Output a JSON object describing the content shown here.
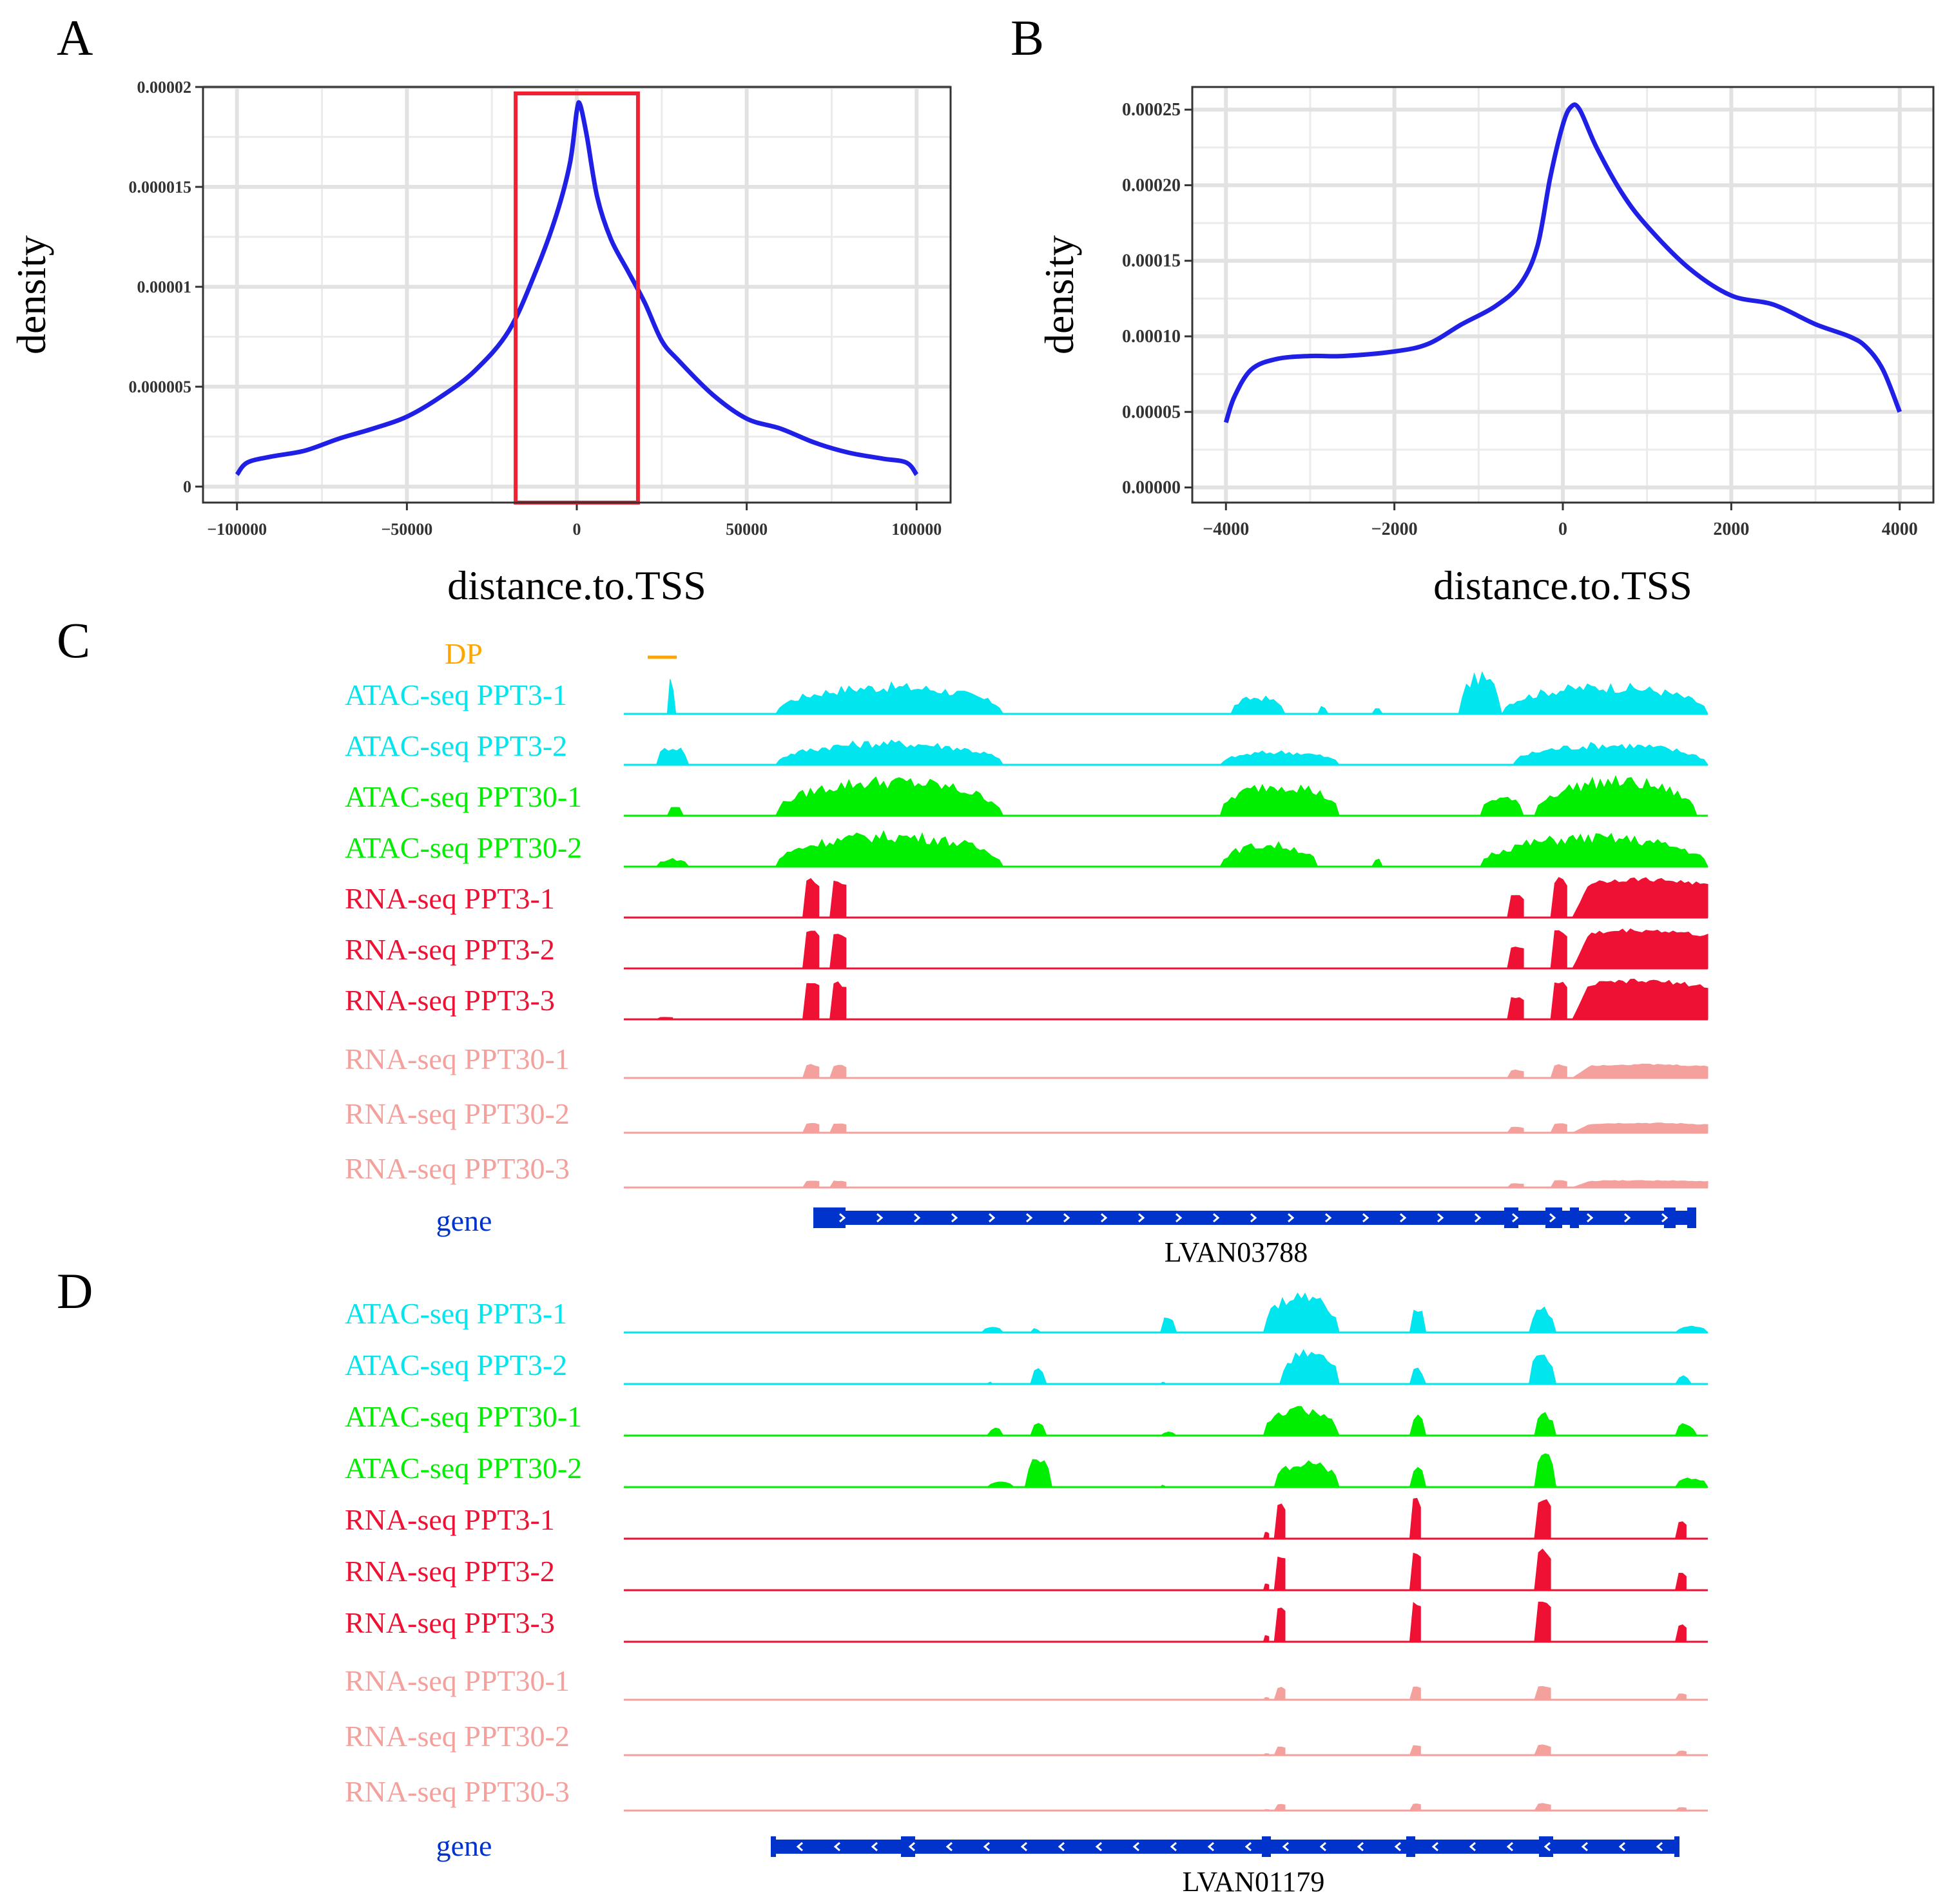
{
  "colors": {
    "atac_ppt3": "#00e5ee",
    "atac_ppt30": "#00ee00",
    "rna_ppt3": "#ee1133",
    "rna_ppt30": "#f4a09c",
    "gene": "#0033cc",
    "dp": "#ffa500",
    "density_line": "#1f1fe6",
    "highlight_box": "#ee2233"
  },
  "panels": {
    "A": {
      "letter": "A"
    },
    "B": {
      "letter": "B"
    },
    "C": {
      "letter": "C",
      "dp_label": "DP",
      "gene_track_label": "gene",
      "gene_name": "LVAN03788",
      "tracks": [
        {
          "label": "ATAC-seq PPT3-1",
          "kind": "atac3"
        },
        {
          "label": "ATAC-seq PPT3-2",
          "kind": "atac3"
        },
        {
          "label": "ATAC-seq PPT30-1",
          "kind": "atac30"
        },
        {
          "label": "ATAC-seq PPT30-2",
          "kind": "atac30"
        },
        {
          "label": "RNA-seq PPT3-1",
          "kind": "rna3"
        },
        {
          "label": "RNA-seq PPT3-2",
          "kind": "rna3"
        },
        {
          "label": "RNA-seq PPT3-3",
          "kind": "rna3"
        },
        {
          "label": "RNA-seq PPT30-1",
          "kind": "rna30"
        },
        {
          "label": "RNA-seq PPT30-2",
          "kind": "rna30"
        },
        {
          "label": "RNA-seq PPT30-3",
          "kind": "rna30"
        }
      ]
    },
    "D": {
      "letter": "D",
      "gene_track_label": "gene",
      "gene_name": "LVAN01179",
      "tracks": [
        {
          "label": "ATAC-seq PPT3-1",
          "kind": "atac3"
        },
        {
          "label": "ATAC-seq PPT3-2",
          "kind": "atac3"
        },
        {
          "label": "ATAC-seq PPT30-1",
          "kind": "atac30"
        },
        {
          "label": "ATAC-seq PPT30-2",
          "kind": "atac30"
        },
        {
          "label": "RNA-seq PPT3-1",
          "kind": "rna3"
        },
        {
          "label": "RNA-seq PPT3-2",
          "kind": "rna3"
        },
        {
          "label": "RNA-seq PPT3-3",
          "kind": "rna3"
        },
        {
          "label": "RNA-seq PPT30-1",
          "kind": "rna30"
        },
        {
          "label": "RNA-seq PPT30-2",
          "kind": "rna30"
        },
        {
          "label": "RNA-seq PPT30-3",
          "kind": "rna30"
        }
      ]
    }
  },
  "chart_data": [
    {
      "id": "A",
      "type": "line",
      "title": "",
      "xlabel": "distance.to.TSS",
      "ylabel": "density",
      "xlim": [
        -110000,
        110000
      ],
      "ylim": [
        -8e-07,
        2e-05
      ],
      "xticks": [
        -100000,
        -50000,
        0,
        50000,
        100000
      ],
      "xtick_labels": [
        "−100000",
        "−50000",
        "0",
        "50000",
        "100000"
      ],
      "yticks": [
        0,
        5e-06,
        1e-05,
        1.5e-05,
        2e-05
      ],
      "ytick_labels": [
        "0",
        "0.000005",
        "0.00001",
        "0.000015",
        "0.00002"
      ],
      "grid": true,
      "highlight_box": {
        "x0": -18000,
        "x1": 18000
      },
      "series": [
        {
          "name": "density",
          "x": [
            -100000,
            -97000,
            -90000,
            -80000,
            -70000,
            -60000,
            -50000,
            -40000,
            -30000,
            -20000,
            -12000,
            -6000,
            -2000,
            0,
            1000,
            3000,
            6000,
            10000,
            15000,
            20000,
            25000,
            30000,
            40000,
            50000,
            60000,
            70000,
            80000,
            90000,
            97000,
            100000
          ],
          "y": [
            6e-07,
            1.2e-06,
            1.5e-06,
            1.8e-06,
            2.4e-06,
            2.9e-06,
            3.5e-06,
            4.5e-06,
            5.8e-06,
            7.8e-06,
            1.08e-05,
            1.36e-05,
            1.62e-05,
            1.88e-05,
            1.91e-05,
            1.75e-05,
            1.45e-05,
            1.24e-05,
            1.08e-05,
            9.2e-06,
            7.3e-06,
            6.3e-06,
            4.6e-06,
            3.4e-06,
            2.9e-06,
            2.2e-06,
            1.7e-06,
            1.4e-06,
            1.2e-06,
            6e-07
          ]
        }
      ]
    },
    {
      "id": "B",
      "type": "line",
      "title": "",
      "xlabel": "distance.to.TSS",
      "ylabel": "density",
      "xlim": [
        -4400,
        4400
      ],
      "ylim": [
        -1e-05,
        0.000265
      ],
      "xticks": [
        -4000,
        -2000,
        0,
        2000,
        4000
      ],
      "xtick_labels": [
        "−4000",
        "−2000",
        "0",
        "2000",
        "4000"
      ],
      "yticks": [
        0,
        5e-05,
        0.0001,
        0.00015,
        0.0002,
        0.00025
      ],
      "ytick_labels": [
        "0.00000",
        "0.00005",
        "0.00010",
        "0.00015",
        "0.00020",
        "0.00025"
      ],
      "grid": true,
      "series": [
        {
          "name": "density",
          "x": [
            -4000,
            -3900,
            -3700,
            -3400,
            -3000,
            -2600,
            -2000,
            -1600,
            -1200,
            -800,
            -500,
            -300,
            -150,
            0,
            100,
            200,
            400,
            700,
            1000,
            1500,
            2000,
            2500,
            3000,
            3400,
            3600,
            3800,
            4000
          ],
          "y": [
            4.3e-05,
            6e-05,
            7.8e-05,
            8.5e-05,
            8.7e-05,
            8.7e-05,
            9e-05,
            9.5e-05,
            0.000108,
            0.00012,
            0.000135,
            0.00016,
            0.000205,
            0.00024,
            0.000252,
            0.00025,
            0.000225,
            0.000195,
            0.000173,
            0.000145,
            0.000127,
            0.000121,
            0.000108,
            0.0001,
            9.3e-05,
            7.8e-05,
            5e-05
          ]
        }
      ]
    }
  ]
}
